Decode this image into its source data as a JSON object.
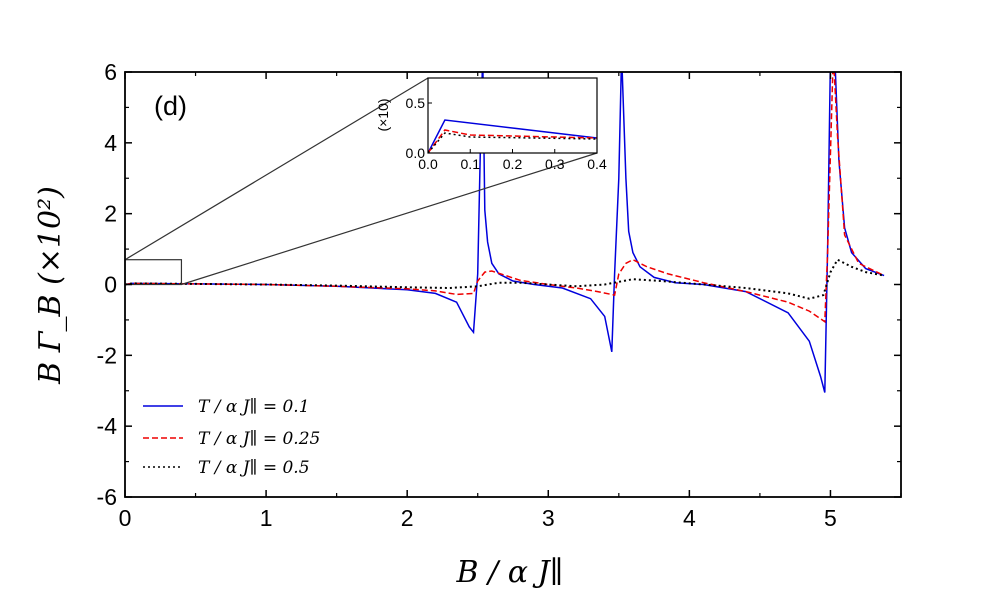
{
  "chart_data": {
    "type": "line",
    "panel_label": "(d)",
    "xlabel": "B / α J∥",
    "ylabel": "B Γ_B (×10²)",
    "xlim": [
      0,
      5.5
    ],
    "ylim": [
      -6,
      6
    ],
    "xticks": [
      "0",
      "1",
      "2",
      "3",
      "4",
      "5"
    ],
    "yticks": [
      "-6",
      "-4",
      "-2",
      "0",
      "2",
      "4",
      "6"
    ],
    "legend": {
      "position": "bottom-left"
    },
    "series": [
      {
        "name": "T / α J∥ = 0.1",
        "color": "#0000dd",
        "style": "solid",
        "x": [
          0,
          0.05,
          0.4,
          1.0,
          1.5,
          2.0,
          2.2,
          2.35,
          2.44,
          2.47,
          2.5,
          2.52,
          2.535,
          2.55,
          2.57,
          2.6,
          2.65,
          2.75,
          2.9,
          3.1,
          3.3,
          3.4,
          3.45,
          3.47,
          3.5,
          3.52,
          3.55,
          3.57,
          3.6,
          3.65,
          3.75,
          3.9,
          4.1,
          4.4,
          4.7,
          4.85,
          4.93,
          4.96,
          4.98,
          5.0,
          5.03,
          5.06,
          5.1,
          5.15,
          5.25,
          5.38
        ],
        "y": [
          0.0,
          0.03,
          0.02,
          0.0,
          -0.05,
          -0.15,
          -0.25,
          -0.5,
          -1.2,
          -1.35,
          0.3,
          4.0,
          6.5,
          2.1,
          1.2,
          0.6,
          0.3,
          0.1,
          0.0,
          -0.1,
          -0.4,
          -0.9,
          -1.9,
          0.3,
          3.0,
          6.5,
          3.0,
          1.5,
          0.9,
          0.5,
          0.2,
          0.05,
          0.0,
          -0.2,
          -0.8,
          -1.6,
          -2.6,
          -3.05,
          1.0,
          6.5,
          6.5,
          3.5,
          1.6,
          0.9,
          0.45,
          0.25
        ]
      },
      {
        "name": "T / α J∥ = 0.25",
        "color": "#ee0000",
        "style": "dashed",
        "x": [
          0,
          0.05,
          0.4,
          1.0,
          1.5,
          2.0,
          2.2,
          2.35,
          2.47,
          2.5,
          2.55,
          2.6,
          2.7,
          2.8,
          3.0,
          3.2,
          3.35,
          3.47,
          3.5,
          3.55,
          3.6,
          3.7,
          3.85,
          4.1,
          4.4,
          4.7,
          4.85,
          4.96,
          4.98,
          5.02,
          5.05,
          5.1,
          5.2,
          5.38
        ],
        "y": [
          0.0,
          0.03,
          0.02,
          0.0,
          -0.05,
          -0.12,
          -0.18,
          -0.28,
          -0.25,
          0.1,
          0.35,
          0.38,
          0.25,
          0.12,
          0.0,
          -0.1,
          -0.2,
          -0.3,
          0.3,
          0.6,
          0.7,
          0.5,
          0.3,
          0.05,
          -0.2,
          -0.5,
          -0.75,
          -1.05,
          0.9,
          6.5,
          4.2,
          1.4,
          0.6,
          0.25
        ]
      },
      {
        "name": "T / α J∥ = 0.5",
        "color": "#000000",
        "style": "dotted",
        "x": [
          0,
          0.05,
          0.4,
          1.0,
          1.5,
          2.0,
          2.3,
          2.5,
          2.65,
          2.8,
          3.0,
          3.2,
          3.4,
          3.6,
          3.8,
          4.1,
          4.4,
          4.7,
          4.85,
          4.95,
          5.0,
          5.05,
          5.15,
          5.25,
          5.38
        ],
        "y": [
          0.0,
          0.03,
          0.02,
          0.0,
          -0.03,
          -0.08,
          -0.1,
          -0.05,
          0.05,
          0.05,
          0.0,
          -0.05,
          0.0,
          0.15,
          0.1,
          0.0,
          -0.1,
          -0.25,
          -0.4,
          -0.3,
          0.35,
          0.7,
          0.5,
          0.35,
          0.25
        ]
      }
    ],
    "inset": {
      "xlim": [
        0,
        0.4
      ],
      "ylim": [
        0,
        0.75
      ],
      "xticks": [
        "0.0",
        "0.1",
        "0.2",
        "0.3",
        "0.4"
      ],
      "yticks": [
        "0.0",
        "0.5"
      ],
      "ylabel": "(×10)",
      "zoom_box": {
        "x": [
          0,
          0.4
        ],
        "y": [
          0,
          0.7
        ]
      },
      "series": [
        {
          "name": "T / α J∥ = 0.1",
          "x": [
            0,
            0.04,
            0.4
          ],
          "y": [
            0.0,
            0.33,
            0.15
          ]
        },
        {
          "name": "T / α J∥ = 0.25",
          "x": [
            0,
            0.04,
            0.1,
            0.4
          ],
          "y": [
            0.0,
            0.23,
            0.18,
            0.15
          ]
        },
        {
          "name": "T / α J∥ = 0.5",
          "x": [
            0,
            0.04,
            0.1,
            0.4
          ],
          "y": [
            0.0,
            0.2,
            0.16,
            0.14
          ]
        }
      ]
    }
  }
}
